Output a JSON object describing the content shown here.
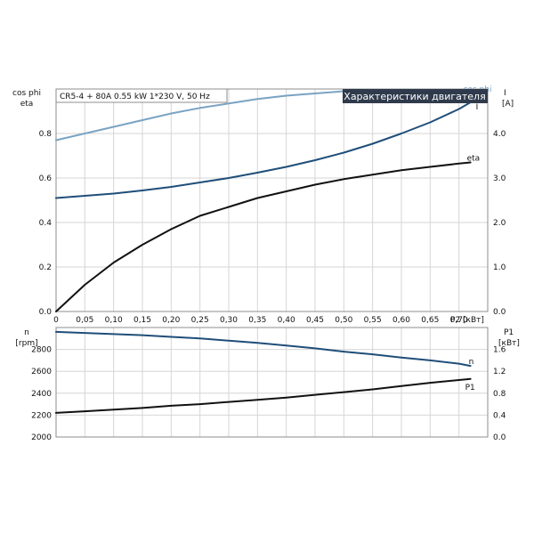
{
  "chart_data": [
    {
      "type": "line",
      "info_label": "CR5-4 + 80A   0.55 kW   1*230 V, 50 Hz",
      "title": "Характеристики двигателя",
      "xlabel": "P2 [кВт]",
      "ylabel_left_line1": "cos phi",
      "ylabel_left_line2": "eta",
      "ylabel_right_line1": "I",
      "ylabel_right_line2": "[A]",
      "xlim": [
        0,
        0.75
      ],
      "ylim_left": [
        0,
        1.0
      ],
      "ylim_right": [
        0,
        5.0
      ],
      "xticks": [
        "0",
        "0,05",
        "0,10",
        "0,15",
        "0,20",
        "0,25",
        "0,30",
        "0,35",
        "0,40",
        "0,45",
        "0,50",
        "0,55",
        "0,60",
        "0,65",
        "0,70"
      ],
      "yticks_left": [
        "0.0",
        "0.2",
        "0.4",
        "0.6",
        "0.8"
      ],
      "yticks_right": [
        "0.0",
        "1.0",
        "2.0",
        "3.0",
        "4.0"
      ],
      "grid": true,
      "series": [
        {
          "name": "cos phi",
          "axis": "left",
          "color": "#7aa3c3",
          "x": [
            0,
            0.05,
            0.1,
            0.15,
            0.2,
            0.25,
            0.3,
            0.35,
            0.4,
            0.45,
            0.5,
            0.55,
            0.6,
            0.65,
            0.7,
            0.72
          ],
          "y": [
            0.77,
            0.8,
            0.83,
            0.86,
            0.89,
            0.915,
            0.935,
            0.955,
            0.97,
            0.98,
            0.99,
            0.995,
            0.995,
            0.99,
            0.985,
            0.98
          ]
        },
        {
          "name": "I",
          "axis": "right",
          "color": "#1f4e79",
          "x": [
            0,
            0.05,
            0.1,
            0.15,
            0.2,
            0.25,
            0.3,
            0.35,
            0.4,
            0.45,
            0.5,
            0.55,
            0.6,
            0.65,
            0.7,
            0.72
          ],
          "y": [
            2.55,
            2.6,
            2.65,
            2.72,
            2.8,
            2.9,
            3.0,
            3.12,
            3.25,
            3.4,
            3.57,
            3.77,
            4.0,
            4.25,
            4.55,
            4.7
          ]
        },
        {
          "name": "eta",
          "axis": "left",
          "color": "#111111",
          "x": [
            0,
            0.05,
            0.1,
            0.15,
            0.2,
            0.25,
            0.3,
            0.35,
            0.4,
            0.45,
            0.5,
            0.55,
            0.6,
            0.65,
            0.7,
            0.72
          ],
          "y": [
            0.0,
            0.12,
            0.22,
            0.3,
            0.37,
            0.43,
            0.47,
            0.51,
            0.54,
            0.57,
            0.595,
            0.615,
            0.635,
            0.65,
            0.665,
            0.67
          ]
        }
      ]
    },
    {
      "type": "line",
      "xlim": [
        0,
        0.75
      ],
      "ylabel_left_line1": "n",
      "ylabel_left_line2": "[rpm]",
      "ylabel_right_line1": "P1",
      "ylabel_right_line2": "[кВт]",
      "ylim_left": [
        2000,
        3000
      ],
      "ylim_right": [
        0,
        2.0
      ],
      "yticks_left": [
        "2000",
        "2200",
        "2400",
        "2600",
        "2800"
      ],
      "yticks_right": [
        "0.0",
        "0.4",
        "0.8",
        "1.2",
        "1.6"
      ],
      "grid": true,
      "series": [
        {
          "name": "n",
          "axis": "left",
          "color": "#1f4e79",
          "x": [
            0,
            0.05,
            0.1,
            0.15,
            0.2,
            0.25,
            0.3,
            0.35,
            0.4,
            0.45,
            0.5,
            0.55,
            0.6,
            0.65,
            0.7,
            0.72
          ],
          "y": [
            2960,
            2950,
            2940,
            2930,
            2915,
            2900,
            2880,
            2860,
            2835,
            2810,
            2780,
            2755,
            2725,
            2700,
            2670,
            2650
          ]
        },
        {
          "name": "P1",
          "axis": "right",
          "color": "#111111",
          "x": [
            0,
            0.05,
            0.1,
            0.15,
            0.2,
            0.25,
            0.3,
            0.35,
            0.4,
            0.45,
            0.5,
            0.55,
            0.6,
            0.65,
            0.7,
            0.72
          ],
          "y": [
            0.44,
            0.47,
            0.5,
            0.53,
            0.57,
            0.6,
            0.64,
            0.68,
            0.72,
            0.77,
            0.82,
            0.87,
            0.93,
            0.99,
            1.04,
            1.06
          ]
        }
      ]
    }
  ]
}
